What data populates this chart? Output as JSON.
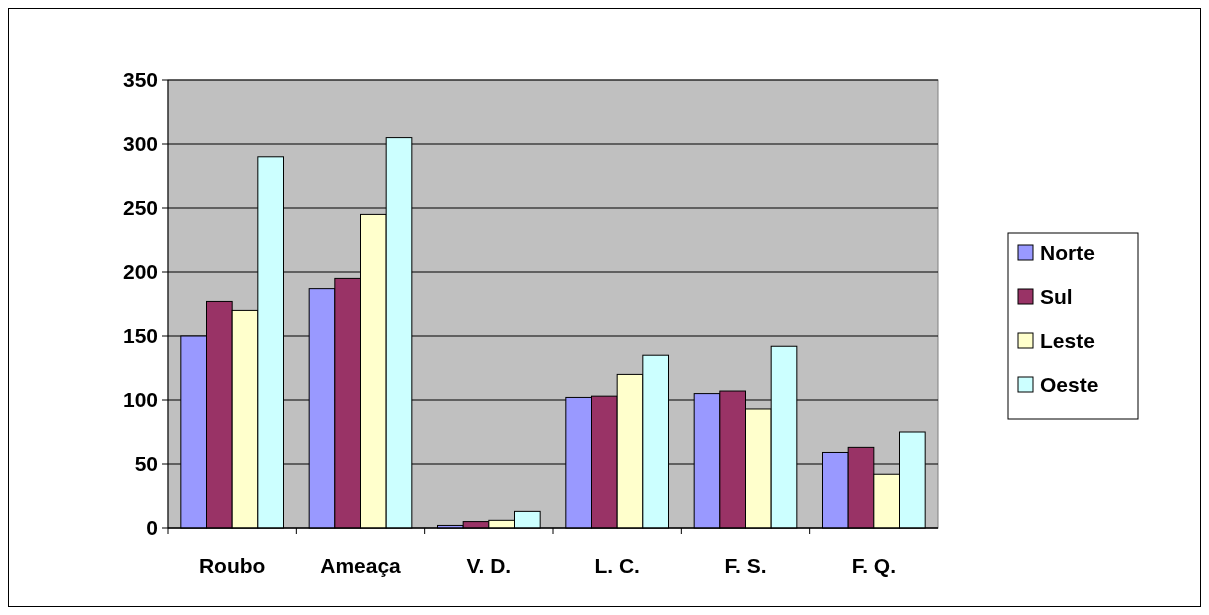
{
  "chart_data": {
    "type": "bar",
    "categories": [
      "Roubo",
      "Ameaça",
      "V. D.",
      "L. C.",
      "F. S.",
      "F. Q."
    ],
    "series": [
      {
        "name": "Norte",
        "color": "#9999ff",
        "values": [
          150,
          187,
          2,
          102,
          105,
          59
        ]
      },
      {
        "name": "Sul",
        "color": "#993366",
        "values": [
          177,
          195,
          5,
          103,
          107,
          63
        ]
      },
      {
        "name": "Leste",
        "color": "#ffffcc",
        "values": [
          170,
          245,
          6,
          120,
          93,
          42
        ]
      },
      {
        "name": "Oeste",
        "color": "#ccffff",
        "values": [
          290,
          305,
          13,
          135,
          142,
          75
        ]
      }
    ],
    "ylim": [
      0,
      350
    ],
    "yticks": [
      0,
      50,
      100,
      150,
      200,
      250,
      300,
      350
    ],
    "grid": "y",
    "legend": "right"
  }
}
